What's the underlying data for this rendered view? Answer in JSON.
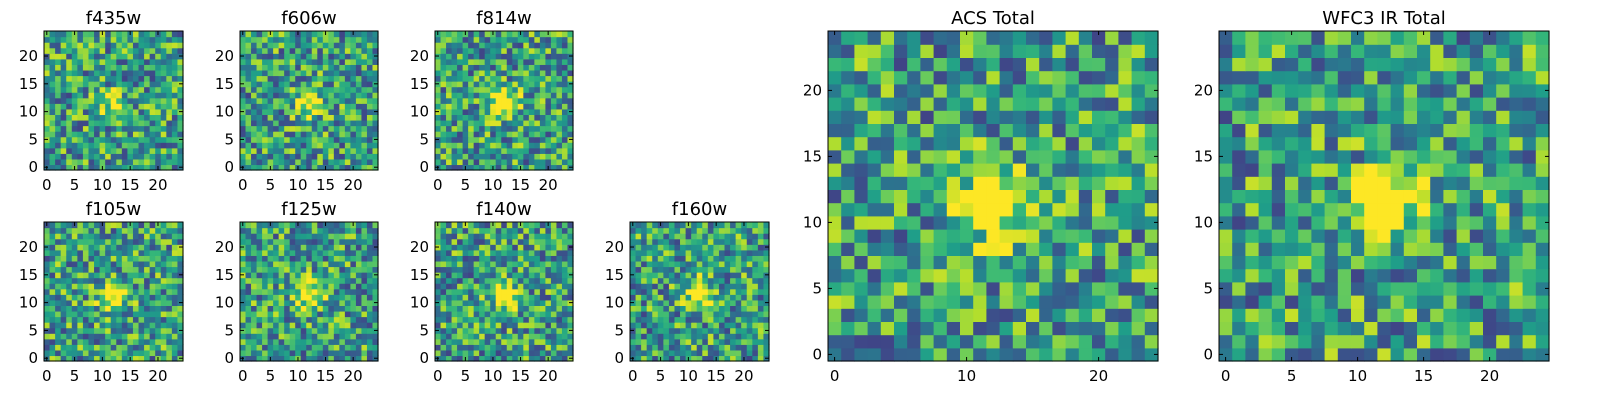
{
  "chart_data": [
    {
      "type": "heatmap",
      "title": "f435w",
      "xticks": [
        "0",
        "5",
        "10",
        "15",
        "20"
      ],
      "yticks": [
        "0",
        "5",
        "10",
        "15",
        "20"
      ],
      "xlim": [
        0,
        25
      ],
      "ylim": [
        0,
        25
      ],
      "colormap": "viridis",
      "seed": 11,
      "source_blob": 0.35
    },
    {
      "type": "heatmap",
      "title": "f606w",
      "xticks": [
        "0",
        "5",
        "10",
        "15",
        "20"
      ],
      "yticks": [
        "0",
        "5",
        "10",
        "15",
        "20"
      ],
      "xlim": [
        0,
        25
      ],
      "ylim": [
        0,
        25
      ],
      "colormap": "viridis",
      "seed": 23,
      "source_blob": 0.55
    },
    {
      "type": "heatmap",
      "title": "f814w",
      "xticks": [
        "0",
        "5",
        "10",
        "15",
        "20"
      ],
      "yticks": [
        "0",
        "5",
        "10",
        "15",
        "20"
      ],
      "xlim": [
        0,
        25
      ],
      "ylim": [
        0,
        25
      ],
      "colormap": "viridis",
      "seed": 37,
      "source_blob": 0.7
    },
    {
      "type": "heatmap",
      "title": "f105w",
      "xticks": [
        "0",
        "5",
        "10",
        "15",
        "20"
      ],
      "yticks": [
        "0",
        "5",
        "10",
        "15",
        "20"
      ],
      "xlim": [
        0,
        25
      ],
      "ylim": [
        0,
        25
      ],
      "colormap": "viridis",
      "seed": 41,
      "source_blob": 0.6
    },
    {
      "type": "heatmap",
      "title": "f125w",
      "xticks": [
        "0",
        "5",
        "10",
        "15",
        "20"
      ],
      "yticks": [
        "0",
        "5",
        "10",
        "15",
        "20"
      ],
      "xlim": [
        0,
        25
      ],
      "ylim": [
        0,
        25
      ],
      "colormap": "viridis",
      "seed": 53,
      "source_blob": 0.6
    },
    {
      "type": "heatmap",
      "title": "f140w",
      "xticks": [
        "0",
        "5",
        "10",
        "15",
        "20"
      ],
      "yticks": [
        "0",
        "5",
        "10",
        "15",
        "20"
      ],
      "xlim": [
        0,
        25
      ],
      "ylim": [
        0,
        25
      ],
      "colormap": "viridis",
      "seed": 67,
      "source_blob": 0.6
    },
    {
      "type": "heatmap",
      "title": "f160w",
      "xticks": [
        "0",
        "5",
        "10",
        "15",
        "20"
      ],
      "yticks": [
        "0",
        "5",
        "10",
        "15",
        "20"
      ],
      "xlim": [
        0,
        25
      ],
      "ylim": [
        0,
        25
      ],
      "colormap": "viridis",
      "seed": 79,
      "source_blob": 0.6
    },
    {
      "type": "heatmap",
      "title": "ACS Total",
      "xticks": [
        "0",
        "10",
        "20"
      ],
      "yticks": [
        "0",
        "5",
        "10",
        "15",
        "20"
      ],
      "xlim": [
        0,
        25
      ],
      "ylim": [
        0,
        25
      ],
      "colormap": "viridis",
      "seed": 97,
      "source_blob": 0.75
    },
    {
      "type": "heatmap",
      "title": "WFC3 IR Total",
      "xticks": [
        "0",
        "5",
        "10",
        "15",
        "20"
      ],
      "yticks": [
        "0",
        "5",
        "10",
        "15",
        "20"
      ],
      "xlim": [
        0,
        25
      ],
      "ylim": [
        0,
        25
      ],
      "colormap": "viridis",
      "seed": 113,
      "source_blob": 0.8
    }
  ]
}
